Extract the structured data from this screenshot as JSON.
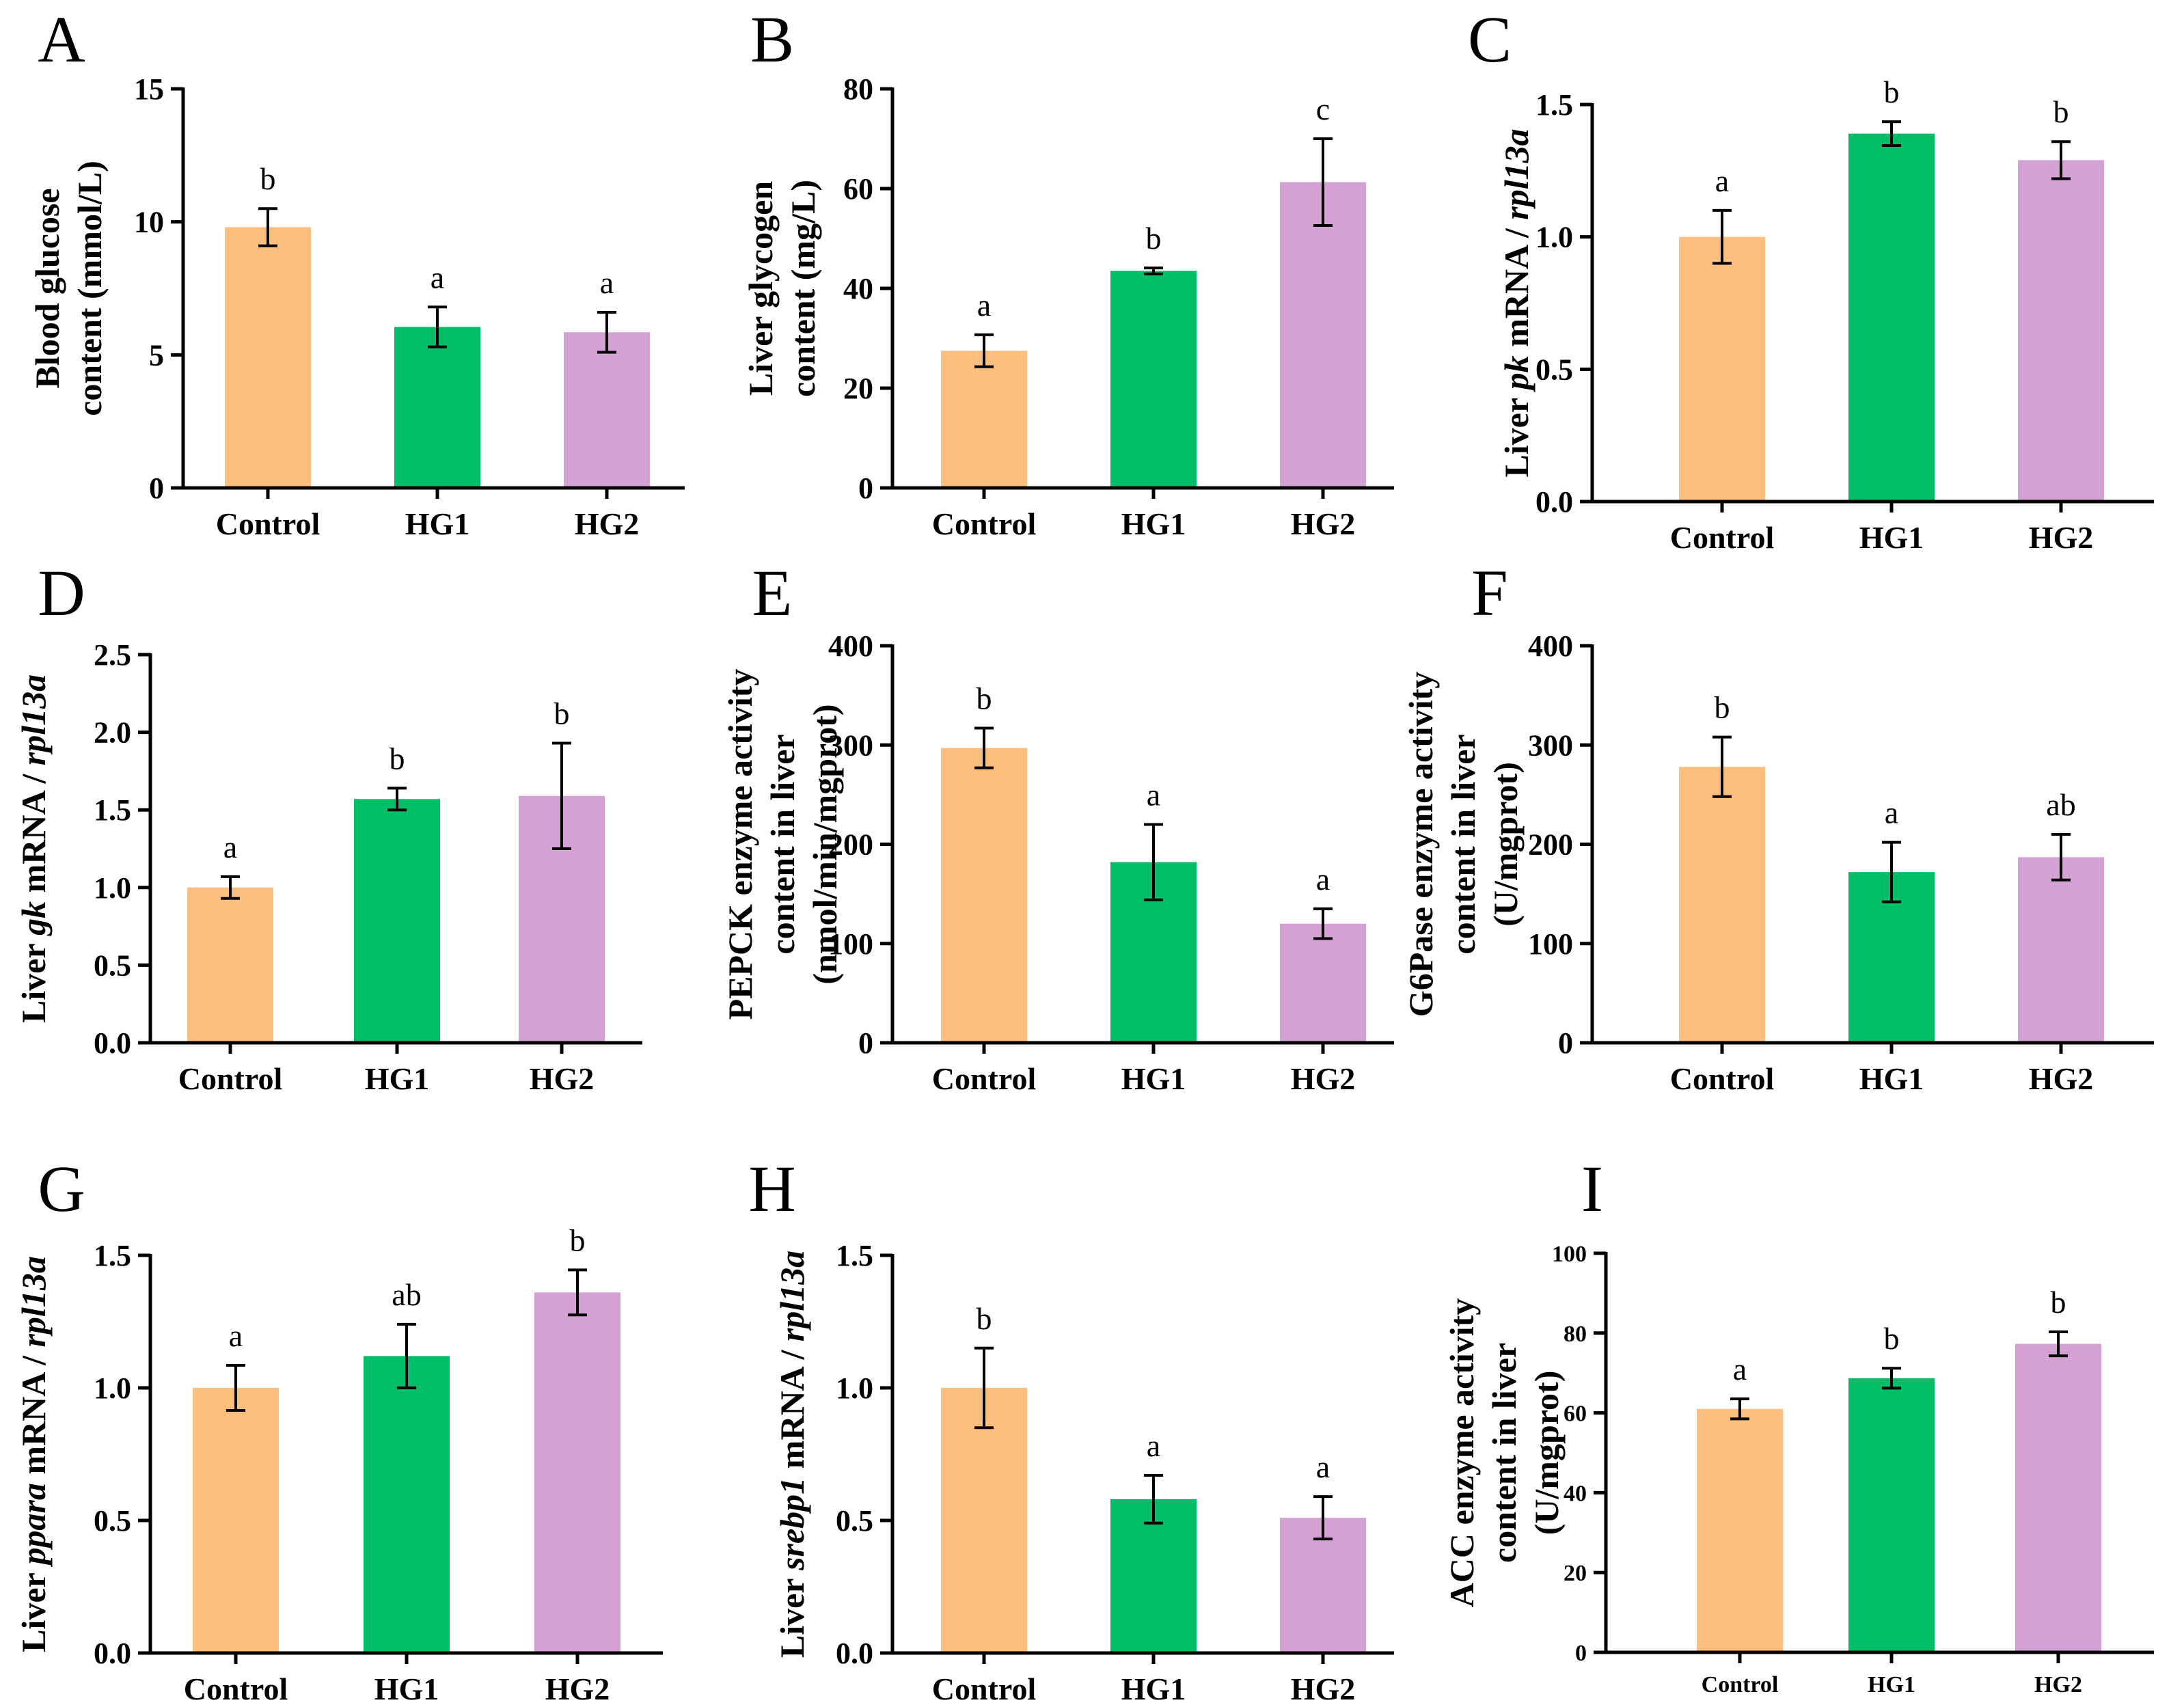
{
  "colors": {
    "Control": "#FDBF7F",
    "HG1": "#00BD68",
    "HG2": "#D3A1D3"
  },
  "chart_data": [
    {
      "panel": "A",
      "type": "bar",
      "categories": [
        "Control",
        "HG1",
        "HG2"
      ],
      "values": [
        9.8,
        6.05,
        5.85
      ],
      "errors": [
        0.7,
        0.75,
        0.75
      ],
      "labels": [
        "b",
        "a",
        "a"
      ],
      "ylabel_lines": [
        [
          {
            "t": "Blood glucose"
          }
        ],
        [
          {
            "t": "content (mmol/L)"
          }
        ]
      ],
      "ylim": [
        0,
        15
      ],
      "yticks": [
        0,
        5,
        10,
        15
      ],
      "tick_labels": [
        "0",
        "5",
        "10",
        "15"
      ]
    },
    {
      "panel": "B",
      "type": "bar",
      "categories": [
        "Control",
        "HG1",
        "HG2"
      ],
      "values": [
        27.5,
        43.5,
        61.3
      ],
      "errors": [
        3.2,
        0.6,
        8.7
      ],
      "labels": [
        "a",
        "b",
        "c"
      ],
      "ylabel_lines": [
        [
          {
            "t": "Liver glycogen"
          }
        ],
        [
          {
            "t": "content (mg/L)"
          }
        ]
      ],
      "ylim": [
        0,
        80
      ],
      "yticks": [
        0,
        20,
        40,
        60,
        80
      ],
      "tick_labels": [
        "0",
        "20",
        "40",
        "60",
        "80"
      ]
    },
    {
      "panel": "C",
      "type": "bar",
      "categories": [
        "Control",
        "HG1",
        "HG2"
      ],
      "values": [
        1.0,
        1.39,
        1.29
      ],
      "errors": [
        0.1,
        0.045,
        0.07
      ],
      "labels": [
        "a",
        "b",
        "b"
      ],
      "ylabel_lines": [
        [
          {
            "t": "Liver "
          },
          {
            "t": "pk",
            "i": true
          },
          {
            "t": " mRNA / "
          },
          {
            "t": "rpl13a",
            "i": true
          }
        ]
      ],
      "ylim": [
        0,
        1.5
      ],
      "yticks": [
        0,
        0.5,
        1.0,
        1.5
      ],
      "tick_labels": [
        "0.0",
        "0.5",
        "1.0",
        "1.5"
      ]
    },
    {
      "panel": "D",
      "type": "bar",
      "categories": [
        "Control",
        "HG1",
        "HG2"
      ],
      "values": [
        1.0,
        1.57,
        1.59
      ],
      "errors": [
        0.07,
        0.07,
        0.34
      ],
      "labels": [
        "a",
        "b",
        "b"
      ],
      "ylabel_lines": [
        [
          {
            "t": "Liver "
          },
          {
            "t": "gk",
            "i": true
          },
          {
            "t": " mRNA / "
          },
          {
            "t": "rpl13a",
            "i": true
          }
        ]
      ],
      "ylim": [
        0,
        2.5
      ],
      "yticks": [
        0,
        0.5,
        1.0,
        1.5,
        2.0,
        2.5
      ],
      "tick_labels": [
        "0.0",
        "0.5",
        "1.0",
        "1.5",
        "2.0",
        "2.5"
      ]
    },
    {
      "panel": "E",
      "type": "bar",
      "categories": [
        "Control",
        "HG1",
        "HG2"
      ],
      "values": [
        297,
        182,
        120
      ],
      "errors": [
        20,
        38,
        15
      ],
      "labels": [
        "b",
        "a",
        "a"
      ],
      "ylabel_lines": [
        [
          {
            "t": "PEPCK enzyme activity"
          }
        ],
        [
          {
            "t": "content in liver"
          }
        ],
        [
          {
            "t": "(nmol/min/mgprot)"
          }
        ]
      ],
      "ylim": [
        0,
        400
      ],
      "yticks": [
        0,
        100,
        200,
        300,
        400
      ],
      "tick_labels": [
        "0",
        "100",
        "200",
        "300",
        "400"
      ]
    },
    {
      "panel": "F",
      "type": "bar",
      "categories": [
        "Control",
        "HG1",
        "HG2"
      ],
      "values": [
        278,
        172,
        187
      ],
      "errors": [
        30,
        30,
        23
      ],
      "labels": [
        "b",
        "a",
        "ab"
      ],
      "ylabel_lines": [
        [
          {
            "t": "G6Pase enzyme activity"
          }
        ],
        [
          {
            "t": "content in liver"
          }
        ],
        [
          {
            "t": "(U/mgprot)"
          }
        ]
      ],
      "ylim": [
        0,
        400
      ],
      "yticks": [
        0,
        100,
        200,
        300,
        400
      ],
      "tick_labels": [
        "0",
        "100",
        "200",
        "300",
        "400"
      ]
    },
    {
      "panel": "G",
      "type": "bar",
      "categories": [
        "Control",
        "HG1",
        "HG2"
      ],
      "values": [
        1.0,
        1.12,
        1.36
      ],
      "errors": [
        0.085,
        0.12,
        0.085
      ],
      "labels": [
        "a",
        "ab",
        "b"
      ],
      "ylabel_lines": [
        [
          {
            "t": "Liver "
          },
          {
            "t": "ppara",
            "i": true
          },
          {
            "t": " mRNA / "
          },
          {
            "t": "rpl13a",
            "i": true
          }
        ]
      ],
      "ylim": [
        0,
        1.5
      ],
      "yticks": [
        0,
        0.5,
        1.0,
        1.5
      ],
      "tick_labels": [
        "0.0",
        "0.5",
        "1.0",
        "1.5"
      ]
    },
    {
      "panel": "H",
      "type": "bar",
      "categories": [
        "Control",
        "HG1",
        "HG2"
      ],
      "values": [
        1.0,
        0.58,
        0.51
      ],
      "errors": [
        0.15,
        0.09,
        0.08
      ],
      "labels": [
        "b",
        "a",
        "a"
      ],
      "ylabel_lines": [
        [
          {
            "t": "Liver "
          },
          {
            "t": "srebp1",
            "i": true
          },
          {
            "t": " mRNA / "
          },
          {
            "t": "rpl13a",
            "i": true
          }
        ]
      ],
      "ylim": [
        0,
        1.5
      ],
      "yticks": [
        0,
        0.5,
        1.0,
        1.5
      ],
      "tick_labels": [
        "0.0",
        "0.5",
        "1.0",
        "1.5"
      ]
    },
    {
      "panel": "I",
      "type": "bar",
      "categories": [
        "Control",
        "HG1",
        "HG2"
      ],
      "values": [
        61,
        68.7,
        77.3
      ],
      "errors": [
        2.5,
        2.5,
        3.0
      ],
      "labels": [
        "a",
        "b",
        "b"
      ],
      "ylabel_lines": [
        [
          {
            "t": "ACC enzyme activity"
          }
        ],
        [
          {
            "t": "content in liver"
          }
        ],
        [
          {
            "t": "(U/mgprot)"
          }
        ]
      ],
      "ylim": [
        0,
        100
      ],
      "yticks": [
        0,
        20,
        40,
        60,
        80,
        100
      ],
      "tick_labels": [
        "0",
        "20",
        "40",
        "60",
        "80",
        "100"
      ]
    }
  ]
}
